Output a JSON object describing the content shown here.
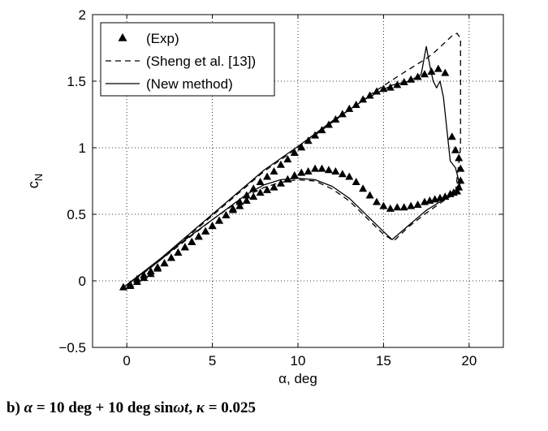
{
  "chart_data": {
    "type": "scatter",
    "xlabel": "α, deg",
    "ylabel": "c_N",
    "ylabel_main": "c",
    "ylabel_sub": "N",
    "xlim": [
      -2,
      22
    ],
    "ylim": [
      -0.5,
      2
    ],
    "xticks": [
      0,
      5,
      10,
      15,
      20
    ],
    "xtick_labels": [
      "0",
      "5",
      "10",
      "15",
      "20"
    ],
    "yticks": [
      -0.5,
      0,
      0.5,
      1,
      1.5,
      2
    ],
    "ytick_labels": [
      "−0.5",
      "0",
      "0.5",
      "1",
      "1.5",
      "2"
    ],
    "grid": true,
    "legend_position": "top-left",
    "series": [
      {
        "name": "(Exp)",
        "style": "markers-triangle",
        "x": [
          -0.2,
          0.2,
          0.6,
          1.0,
          1.4,
          1.8,
          2.2,
          2.6,
          3.0,
          3.4,
          3.8,
          4.2,
          4.6,
          5.0,
          5.4,
          5.8,
          6.2,
          6.6,
          7.0,
          7.4,
          7.8,
          8.2,
          8.6,
          9.0,
          9.4,
          9.8,
          10.2,
          10.6,
          11.0,
          11.4,
          11.8,
          12.2,
          12.6,
          13.0,
          13.4,
          13.8,
          14.2,
          14.6,
          15.0,
          15.4,
          15.8,
          16.2,
          16.6,
          17.0,
          17.4,
          17.8,
          18.2,
          18.6,
          19.0,
          19.2,
          19.4,
          19.5,
          19.5,
          19.4,
          19.3,
          19.1,
          18.9,
          18.6,
          18.3,
          18.0,
          17.7,
          17.4,
          17.0,
          16.6,
          16.2,
          15.8,
          15.4,
          15.0,
          14.6,
          14.2,
          13.8,
          13.4,
          13.0,
          12.6,
          12.2,
          11.8,
          11.4,
          11.0,
          10.6,
          10.2,
          9.8,
          9.4,
          9.0,
          8.6,
          8.2,
          7.8,
          7.4,
          7.0,
          6.6,
          6.2,
          5.8,
          5.4,
          5.0,
          4.6,
          4.2,
          3.8,
          3.4,
          3.0,
          2.6,
          2.2,
          1.8,
          1.4,
          1.0,
          0.6,
          0.2
        ],
        "y": [
          -0.05,
          -0.03,
          0.01,
          0.04,
          0.07,
          0.1,
          0.13,
          0.17,
          0.21,
          0.25,
          0.29,
          0.33,
          0.37,
          0.41,
          0.45,
          0.49,
          0.54,
          0.59,
          0.64,
          0.69,
          0.74,
          0.78,
          0.82,
          0.87,
          0.91,
          0.96,
          1.0,
          1.05,
          1.09,
          1.13,
          1.17,
          1.21,
          1.25,
          1.29,
          1.32,
          1.36,
          1.39,
          1.42,
          1.44,
          1.45,
          1.47,
          1.49,
          1.51,
          1.53,
          1.55,
          1.57,
          1.59,
          1.56,
          1.08,
          0.98,
          0.92,
          0.84,
          0.75,
          0.7,
          0.67,
          0.66,
          0.65,
          0.63,
          0.62,
          0.61,
          0.6,
          0.59,
          0.57,
          0.56,
          0.55,
          0.55,
          0.54,
          0.56,
          0.59,
          0.64,
          0.69,
          0.74,
          0.78,
          0.8,
          0.82,
          0.83,
          0.84,
          0.84,
          0.82,
          0.81,
          0.79,
          0.76,
          0.73,
          0.7,
          0.68,
          0.66,
          0.63,
          0.6,
          0.56,
          0.53,
          0.49,
          0.45,
          0.41,
          0.37,
          0.33,
          0.29,
          0.25,
          0.21,
          0.17,
          0.13,
          0.09,
          0.05,
          0.02,
          -0.01,
          -0.04
        ]
      },
      {
        "name": "(Sheng et al. [13])",
        "style": "dashed",
        "x": [
          -0.2,
          2.0,
          5.0,
          8.0,
          10.0,
          12.0,
          14.0,
          16.0,
          17.0,
          17.5,
          18.0,
          18.5,
          19.0,
          19.3,
          19.5,
          19.5,
          19.2,
          18.5,
          17.5,
          16.5,
          15.6,
          15.0,
          14.2,
          13.0,
          12.0,
          11.0,
          10.0,
          9.0,
          8.0,
          7.0,
          5.0,
          3.0,
          1.0,
          -0.2
        ],
        "y": [
          -0.05,
          0.16,
          0.49,
          0.82,
          1.0,
          1.19,
          1.38,
          1.55,
          1.63,
          1.67,
          1.72,
          1.78,
          1.84,
          1.86,
          1.82,
          1.0,
          0.66,
          0.6,
          0.51,
          0.41,
          0.3,
          0.35,
          0.45,
          0.6,
          0.69,
          0.75,
          0.76,
          0.74,
          0.7,
          0.64,
          0.46,
          0.26,
          0.06,
          -0.05
        ]
      },
      {
        "name": "(New method)",
        "style": "solid",
        "x": [
          -0.2,
          2.0,
          5.0,
          8.0,
          10.0,
          12.0,
          14.0,
          15.5,
          16.5,
          17.2,
          17.5,
          17.7,
          17.9,
          18.1,
          18.3,
          18.5,
          18.9,
          19.2,
          19.4,
          19.5,
          19.2,
          18.5,
          17.5,
          16.5,
          15.5,
          15.0,
          14.2,
          13.0,
          12.0,
          11.0,
          10.0,
          9.0,
          8.0,
          7.0,
          5.0,
          3.0,
          1.0,
          -0.2
        ],
        "y": [
          -0.05,
          0.17,
          0.5,
          0.83,
          1.01,
          1.2,
          1.37,
          1.47,
          1.5,
          1.55,
          1.76,
          1.62,
          1.5,
          1.45,
          1.5,
          1.38,
          0.9,
          0.85,
          0.75,
          0.7,
          0.66,
          0.61,
          0.53,
          0.42,
          0.31,
          0.37,
          0.47,
          0.62,
          0.71,
          0.76,
          0.77,
          0.76,
          0.72,
          0.65,
          0.46,
          0.27,
          0.07,
          -0.05
        ]
      }
    ]
  },
  "caption": {
    "prefix": "b) ",
    "alpha": "α",
    "middle": " = 10 deg + 10 deg sin",
    "omega": "ω",
    "t": "t",
    "sep": ", ",
    "kappa": "κ",
    "suffix": " = 0.025"
  }
}
